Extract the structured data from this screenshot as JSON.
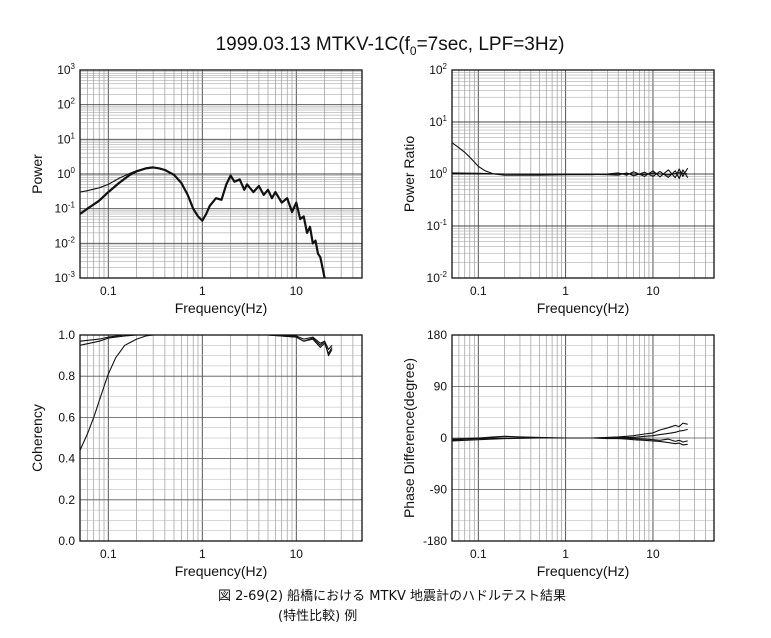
{
  "figure": {
    "title_main": "1999.03.13 MTKV-1C(f",
    "title_sub": "0",
    "title_rest": "=7sec, LPF=3Hz)",
    "caption_line1": "図 2-69(2) 船橋における MTKV 地震計のハドルテスト結果",
    "caption_line2": "(特性比較) 例"
  },
  "chart_data": [
    {
      "id": "power",
      "type": "line",
      "xlabel": "Frequency(Hz)",
      "ylabel": "Power",
      "xscale": "log",
      "yscale": "log",
      "xlim": [
        0.05,
        50
      ],
      "ylim": [
        0.001,
        1000
      ],
      "xticks": [
        {
          "v": 0.1,
          "label": "0.1"
        },
        {
          "v": 1,
          "label": "1"
        },
        {
          "v": 10,
          "label": "10"
        }
      ],
      "yticks": [
        {
          "v": 0.001,
          "base": "10",
          "exp": "-3"
        },
        {
          "v": 0.01,
          "base": "10",
          "exp": "-2"
        },
        {
          "v": 0.1,
          "base": "10",
          "exp": "-1"
        },
        {
          "v": 1,
          "base": "10",
          "exp": "0"
        },
        {
          "v": 10,
          "base": "10",
          "exp": "1"
        },
        {
          "v": 100,
          "base": "10",
          "exp": "2"
        },
        {
          "v": 1000,
          "base": "10",
          "exp": "3"
        }
      ],
      "series": [
        {
          "x": [
            0.05,
            0.06,
            0.08,
            0.1,
            0.13,
            0.17,
            0.2,
            0.25,
            0.3,
            0.35,
            0.4,
            0.5,
            0.6,
            0.7,
            0.8,
            0.9,
            1.0,
            1.1,
            1.2,
            1.4,
            1.6,
            1.8,
            2.0,
            2.2,
            2.5,
            2.8,
            3.0,
            3.5,
            4.0,
            4.5,
            5.0,
            5.5,
            6.0,
            7.0,
            8.0,
            9.0,
            10,
            11,
            12,
            13,
            14,
            15,
            16,
            17,
            18,
            19,
            20
          ],
          "y": [
            0.07,
            0.1,
            0.17,
            0.3,
            0.55,
            0.95,
            1.2,
            1.45,
            1.55,
            1.45,
            1.3,
            0.95,
            0.55,
            0.25,
            0.1,
            0.06,
            0.045,
            0.07,
            0.12,
            0.2,
            0.18,
            0.5,
            0.9,
            0.6,
            0.7,
            0.35,
            0.5,
            0.3,
            0.45,
            0.25,
            0.35,
            0.2,
            0.3,
            0.15,
            0.2,
            0.08,
            0.15,
            0.05,
            0.06,
            0.02,
            0.03,
            0.01,
            0.012,
            0.005,
            0.004,
            0.002,
            0.001
          ]
        },
        {
          "x": [
            0.05,
            0.06,
            0.08,
            0.1,
            0.13,
            0.17,
            0.2,
            0.25,
            0.3,
            0.35,
            0.4,
            0.5,
            0.6,
            0.7,
            0.8,
            0.9,
            1.0
          ],
          "y": [
            0.3,
            0.33,
            0.4,
            0.5,
            0.75,
            1.05,
            1.25,
            1.45,
            1.55,
            1.45,
            1.3,
            0.95,
            0.55,
            0.25,
            0.1,
            0.06,
            0.045
          ]
        }
      ]
    },
    {
      "id": "ratio",
      "type": "line",
      "xlabel": "Frequency(Hz)",
      "ylabel": "Power Ratio",
      "xscale": "log",
      "yscale": "log",
      "xlim": [
        0.05,
        50
      ],
      "ylim": [
        0.01,
        100
      ],
      "xticks": [
        {
          "v": 0.1,
          "label": "0.1"
        },
        {
          "v": 1,
          "label": "1"
        },
        {
          "v": 10,
          "label": "10"
        }
      ],
      "yticks": [
        {
          "v": 0.01,
          "base": "10",
          "exp": "-2"
        },
        {
          "v": 0.1,
          "base": "10",
          "exp": "-1"
        },
        {
          "v": 1,
          "base": "10",
          "exp": "0"
        },
        {
          "v": 10,
          "base": "10",
          "exp": "1"
        },
        {
          "v": 100,
          "base": "10",
          "exp": "2"
        }
      ],
      "series": [
        {
          "x": [
            0.05,
            0.06,
            0.07,
            0.08,
            0.09,
            0.1,
            0.12,
            0.15,
            0.2,
            0.5,
            1,
            2,
            3,
            4,
            5,
            6,
            8,
            10,
            12,
            15,
            18,
            20,
            22,
            25
          ],
          "y": [
            4.0,
            3.2,
            2.6,
            2.1,
            1.7,
            1.4,
            1.15,
            1.0,
            0.95,
            0.95,
            0.97,
            0.97,
            1.0,
            1.05,
            0.95,
            1.1,
            0.9,
            1.15,
            0.88,
            1.2,
            0.85,
            1.25,
            0.9,
            1.3
          ]
        },
        {
          "x": [
            0.05,
            0.1,
            0.2,
            0.5,
            1,
            2,
            3,
            4,
            5,
            6,
            8,
            10,
            12,
            15,
            18,
            20,
            22,
            25
          ],
          "y": [
            1.05,
            1.03,
            1.0,
            0.98,
            0.98,
            0.98,
            0.97,
            0.95,
            1.05,
            0.92,
            1.08,
            0.9,
            1.12,
            0.86,
            1.15,
            0.82,
            1.2,
            0.85
          ]
        },
        {
          "x": [
            0.05,
            0.1,
            0.2,
            0.5,
            1,
            2,
            3,
            5,
            8,
            10,
            15,
            20,
            25
          ],
          "y": [
            1.0,
            1.0,
            1.0,
            1.0,
            1.0,
            1.0,
            1.0,
            1.02,
            0.98,
            1.04,
            0.96,
            1.06,
            1.0
          ]
        }
      ]
    },
    {
      "id": "coherency",
      "type": "line",
      "xlabel": "Frequency(Hz)",
      "ylabel": "Coherency",
      "xscale": "log",
      "yscale": "linear",
      "xlim": [
        0.05,
        50
      ],
      "ylim": [
        0,
        1
      ],
      "xticks": [
        {
          "v": 0.1,
          "label": "0.1"
        },
        {
          "v": 1,
          "label": "1"
        },
        {
          "v": 10,
          "label": "10"
        }
      ],
      "yticks": [
        {
          "v": 0,
          "label": "0.0"
        },
        {
          "v": 0.2,
          "label": "0.2"
        },
        {
          "v": 0.4,
          "label": "0.4"
        },
        {
          "v": 0.6,
          "label": "0.6"
        },
        {
          "v": 0.8,
          "label": "0.8"
        },
        {
          "v": 1.0,
          "label": "1.0"
        }
      ],
      "series": [
        {
          "x": [
            0.05,
            0.06,
            0.07,
            0.08,
            0.09,
            0.1,
            0.12,
            0.15,
            0.2,
            0.25,
            0.3,
            0.4,
            1,
            5,
            10,
            12,
            15,
            18,
            20,
            22,
            24
          ],
          "y": [
            0.44,
            0.52,
            0.6,
            0.68,
            0.75,
            0.81,
            0.89,
            0.95,
            0.98,
            0.995,
            1.0,
            1.0,
            1.0,
            1.0,
            0.99,
            0.97,
            0.98,
            0.94,
            0.96,
            0.91,
            0.94
          ]
        },
        {
          "x": [
            0.05,
            0.08,
            0.1,
            0.15,
            0.2,
            0.3,
            1,
            5,
            10,
            12,
            15,
            18,
            20,
            22,
            24
          ],
          "y": [
            0.95,
            0.97,
            0.985,
            0.995,
            1.0,
            1.0,
            1.0,
            1.0,
            0.995,
            0.98,
            0.99,
            0.96,
            0.97,
            0.93,
            0.95
          ]
        },
        {
          "x": [
            0.05,
            0.08,
            0.1,
            0.15,
            0.2,
            1,
            5,
            10,
            12,
            15,
            18,
            20,
            22,
            24
          ],
          "y": [
            0.97,
            0.98,
            0.99,
            1.0,
            1.0,
            1.0,
            1.0,
            0.99,
            0.97,
            0.985,
            0.95,
            0.97,
            0.9,
            0.93
          ]
        }
      ]
    },
    {
      "id": "phase",
      "type": "line",
      "xlabel": "Frequency(Hz)",
      "ylabel": "Phase Difference(degree)",
      "xscale": "log",
      "yscale": "linear",
      "xlim": [
        0.05,
        50
      ],
      "ylim": [
        -180,
        180
      ],
      "xticks": [
        {
          "v": 0.1,
          "label": "0.1"
        },
        {
          "v": 1,
          "label": "1"
        },
        {
          "v": 10,
          "label": "10"
        }
      ],
      "yticks": [
        {
          "v": -180,
          "label": "-180"
        },
        {
          "v": -90,
          "label": "-90"
        },
        {
          "v": 0,
          "label": "0"
        },
        {
          "v": 90,
          "label": "90"
        },
        {
          "v": 180,
          "label": "180"
        }
      ],
      "series": [
        {
          "x": [
            0.05,
            0.07,
            0.1,
            0.15,
            0.2,
            0.3,
            0.5,
            1,
            2,
            3,
            4,
            5,
            6,
            8,
            10,
            12,
            15,
            18,
            20,
            22,
            25
          ],
          "y": [
            -4,
            -2,
            0,
            2,
            3,
            2,
            1,
            0,
            0,
            1,
            2,
            3,
            4,
            7,
            9,
            14,
            18,
            22,
            20,
            26,
            24
          ]
        },
        {
          "x": [
            0.05,
            0.1,
            0.2,
            0.5,
            1,
            2,
            3,
            4,
            5,
            6,
            8,
            10,
            12,
            15,
            18,
            20,
            22,
            25
          ],
          "y": [
            -3,
            -1,
            0,
            0,
            0,
            0,
            -1,
            -1,
            -2,
            -3,
            -4,
            -5,
            -6,
            -8,
            -10,
            -9,
            -12,
            -11
          ]
        },
        {
          "x": [
            0.05,
            0.1,
            0.2,
            0.5,
            1,
            2,
            4,
            6,
            8,
            10,
            12,
            15,
            18,
            20,
            22,
            25
          ],
          "y": [
            -2,
            0,
            0,
            0,
            0,
            0,
            1,
            1,
            3,
            4,
            6,
            8,
            10,
            12,
            13,
            15
          ]
        },
        {
          "x": [
            0.05,
            0.1,
            0.2,
            0.5,
            1,
            2,
            4,
            6,
            8,
            10,
            12,
            15,
            18,
            20,
            22,
            25
          ],
          "y": [
            -5,
            -3,
            -1,
            0,
            0,
            0,
            0,
            -1,
            -2,
            -3,
            -4,
            -2,
            -6,
            -4,
            -7,
            -5
          ]
        }
      ]
    }
  ]
}
